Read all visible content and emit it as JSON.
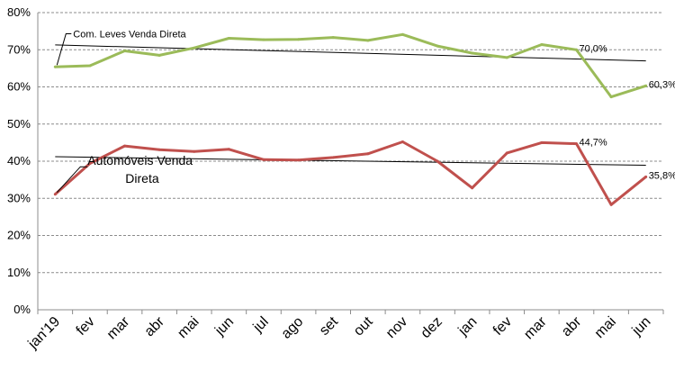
{
  "chart_data": {
    "type": "line",
    "categories": [
      "jan'19",
      "fev",
      "mar",
      "abr",
      "mai",
      "jun",
      "jul",
      "ago",
      "set",
      "out",
      "nov",
      "dez",
      "jan",
      "fev",
      "mar",
      "abr",
      "mai",
      "jun"
    ],
    "ylim": [
      0,
      80
    ],
    "yticks": [
      0,
      10,
      20,
      30,
      40,
      50,
      60,
      70,
      80
    ],
    "ytick_suffix": "%",
    "grid": true,
    "series": [
      {
        "name": "Com. Leves Venda Direta",
        "color": "#9bbb59",
        "values": [
          65.4,
          65.7,
          69.7,
          68.5,
          70.5,
          73.1,
          72.7,
          72.8,
          73.3,
          72.5,
          74.1,
          71.0,
          69.1,
          67.9,
          71.4,
          70.0,
          57.3,
          60.3
        ],
        "trend": [
          71.3,
          67.0
        ]
      },
      {
        "name": "Automóveis Venda Direta",
        "color": "#c0504d",
        "values": [
          31.1,
          39.4,
          44.1,
          43.1,
          42.6,
          43.2,
          40.4,
          40.3,
          41.0,
          42.0,
          45.2,
          40.0,
          32.8,
          42.2,
          45.0,
          44.7,
          28.3,
          35.8
        ],
        "trend": [
          41.2,
          38.9
        ]
      }
    ],
    "data_labels": [
      {
        "series": 0,
        "index": 15,
        "text": "70,0%"
      },
      {
        "series": 0,
        "index": 17,
        "text": "60,3%"
      },
      {
        "series": 1,
        "index": 15,
        "text": "44,7%"
      },
      {
        "series": 1,
        "index": 17,
        "text": "35,8%"
      }
    ],
    "series_labels": [
      {
        "series": 0,
        "lines": [
          "Com. Leves Venda Direta"
        ]
      },
      {
        "series": 1,
        "lines": [
          "Automóveis Venda",
          "Direta"
        ]
      }
    ]
  }
}
